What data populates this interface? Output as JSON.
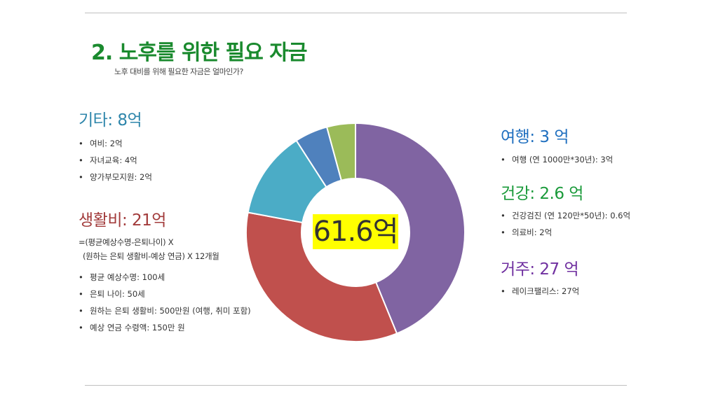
{
  "title": "2. 노후를 위한 필요 자금",
  "subtitle": "노후 대비를 위해 필요한 자금은 얼마인가?",
  "categories": {
    "etc": {
      "heading": "기타: 8억",
      "color": "#2e86ab",
      "items": [
        "여비: 2억",
        "자녀교육: 4억",
        "양가부모지원: 2억"
      ]
    },
    "living": {
      "heading": "생활비: 21억",
      "color": "#a23b3b",
      "formula_line1": "=(평균예상수명-은퇴나이) X",
      "formula_line2": "(원하는 은퇴 생활비-예상 연금) X 12개월",
      "items": [
        "평균 예상수명: 100세",
        "은퇴 나이: 50세",
        "원하는 은퇴 생활비: 500만원 (여행, 취미 포함)",
        "예상 연금 수령액: 150만 원"
      ]
    },
    "travel": {
      "heading": "여행: 3 억",
      "color": "#1f6fbf",
      "items": [
        "여행 (연 1000만*30년): 3억"
      ]
    },
    "health": {
      "heading": "건강: 2.6 억",
      "color": "#1a9a3a",
      "items": [
        "건강검진 (연 120만*50년): 0.6억",
        "의료비: 2억"
      ]
    },
    "housing": {
      "heading": "거주: 27 억",
      "color": "#7030a0",
      "items": [
        "레이크팰리스: 27억"
      ]
    }
  },
  "chart_data": {
    "type": "pie",
    "donut": true,
    "center_label": "61.6억",
    "categories": [
      "거주",
      "생활비",
      "기타",
      "여행",
      "건강"
    ],
    "values": [
      27,
      21,
      8,
      3,
      2.6
    ],
    "colors": [
      "#8064a2",
      "#c0504d",
      "#4bacc6",
      "#4f81bd",
      "#9bbb59"
    ]
  }
}
